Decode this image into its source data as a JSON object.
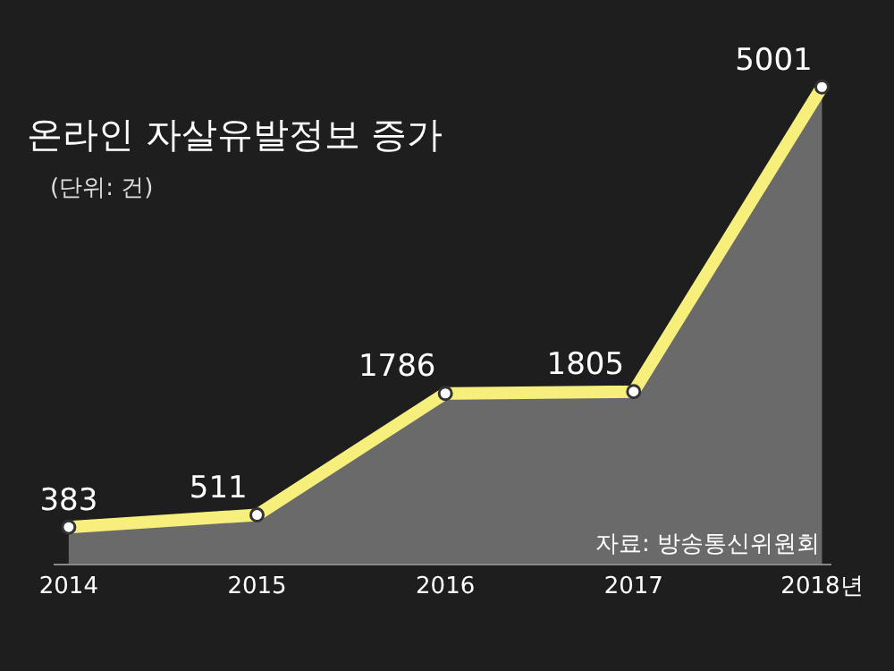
{
  "chart_data": {
    "type": "area",
    "title": "온라인 자살유발정보 증가",
    "subtitle": "(단위: 건)",
    "categories": [
      "2014",
      "2015",
      "2016",
      "2017",
      "2018년"
    ],
    "series": [
      {
        "color": "#f7ef7c",
        "values": [
          383,
          511,
          1786,
          1805,
          5001
        ]
      }
    ],
    "data_labels": true,
    "marker": "circle",
    "grid": false,
    "legend": false,
    "annotations": [
      "자료: 방송통신위원회"
    ]
  }
}
